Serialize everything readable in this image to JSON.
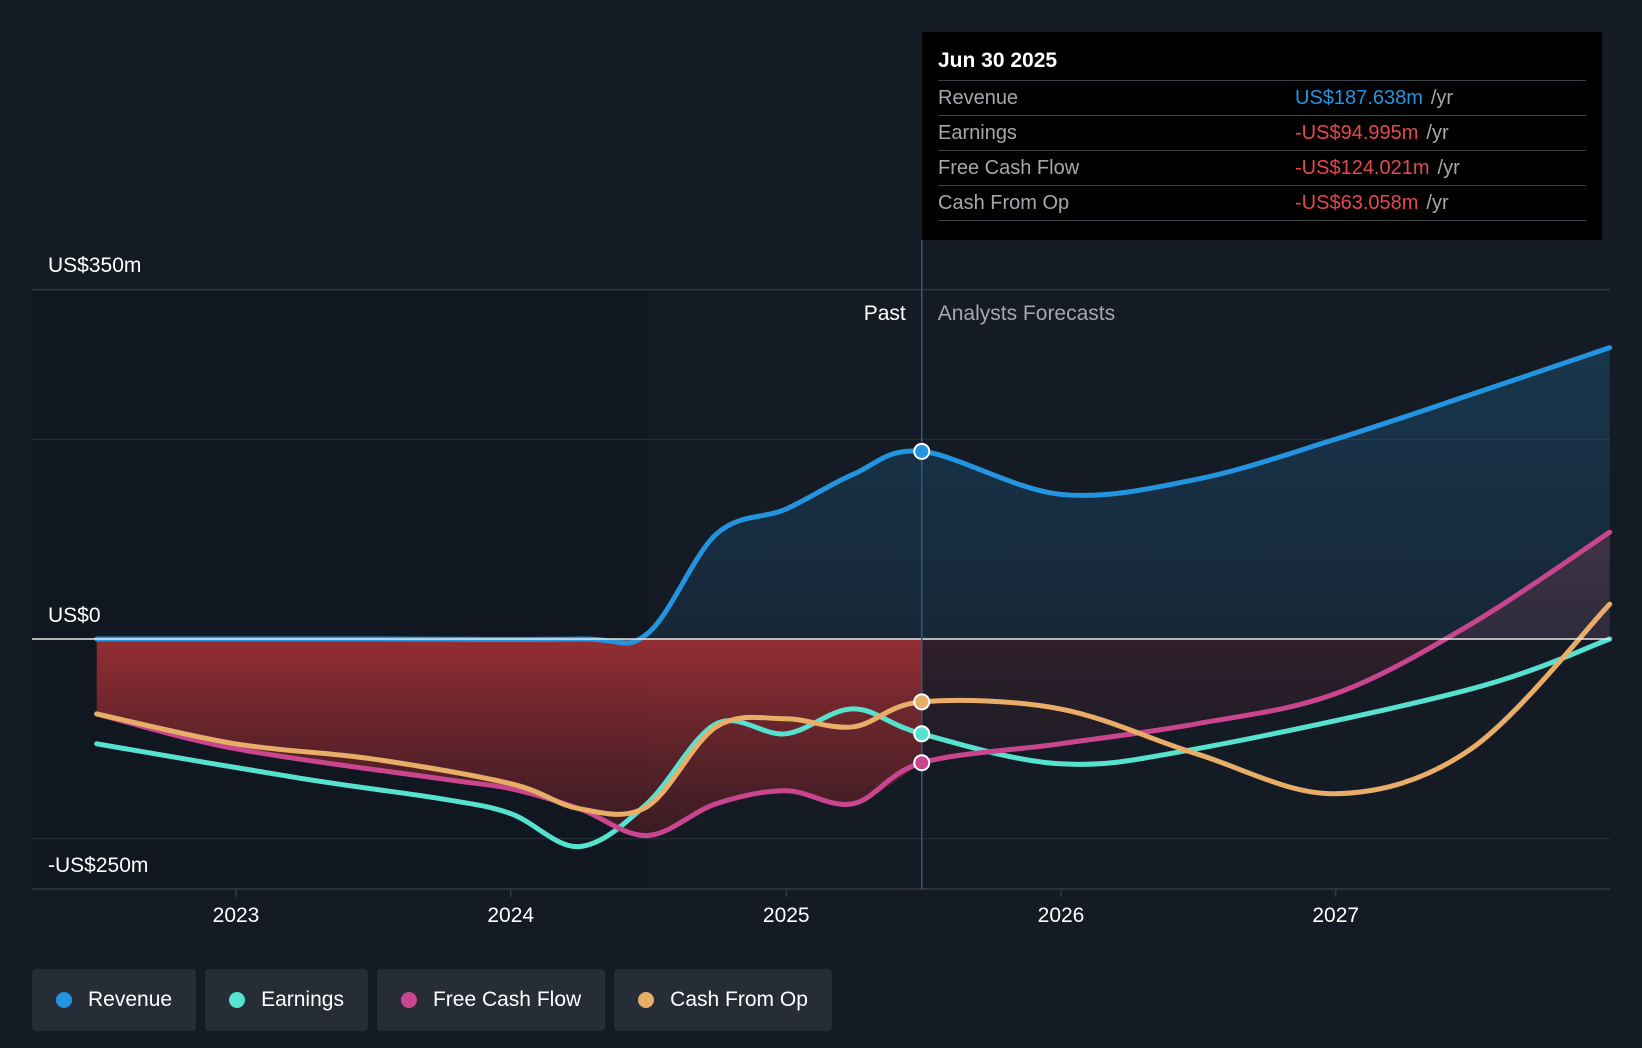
{
  "chart_data": {
    "type": "area",
    "y_labels": {
      "top": "US$350m",
      "zero": "US$0",
      "bottom": "-US$250m"
    },
    "ylim": [
      -250,
      350
    ],
    "x_ticks": [
      "2023",
      "2024",
      "2025",
      "2026",
      "2027"
    ],
    "past_label": "Past",
    "forecast_label": "Analysts Forecasts",
    "series": [
      {
        "name": "Revenue",
        "color": "#2394df",
        "points": [
          [
            "2022-06-30",
            0
          ],
          [
            "2023-06-30",
            0
          ],
          [
            "2024-04-01",
            0
          ],
          [
            "2024-06-30",
            5
          ],
          [
            "2024-09-30",
            105
          ],
          [
            "2024-12-31",
            130
          ],
          [
            "2025-03-31",
            165
          ],
          [
            "2025-06-30",
            188
          ],
          [
            "2025-12-31",
            145
          ],
          [
            "2026-06-30",
            160
          ],
          [
            "2026-12-31",
            200
          ],
          [
            "2027-06-30",
            245
          ],
          [
            "2027-12-31",
            292
          ]
        ]
      },
      {
        "name": "Earnings",
        "color": "#57e2d0",
        "points": [
          [
            "2022-06-30",
            -105
          ],
          [
            "2023-03-31",
            -140
          ],
          [
            "2023-09-30",
            -160
          ],
          [
            "2024-01-01",
            -175
          ],
          [
            "2024-04-01",
            -208
          ],
          [
            "2024-06-30",
            -165
          ],
          [
            "2024-09-30",
            -85
          ],
          [
            "2024-12-31",
            -95
          ],
          [
            "2025-03-31",
            -70
          ],
          [
            "2025-06-30",
            -95
          ],
          [
            "2025-12-31",
            -125
          ],
          [
            "2026-06-30",
            -110
          ],
          [
            "2027-06-30",
            -50
          ],
          [
            "2027-12-31",
            0
          ]
        ]
      },
      {
        "name": "Free Cash Flow",
        "color": "#c9468f",
        "points": [
          [
            "2022-06-30",
            -75
          ],
          [
            "2023-01-01",
            -110
          ],
          [
            "2023-09-30",
            -140
          ],
          [
            "2024-01-01",
            -150
          ],
          [
            "2024-04-01",
            -170
          ],
          [
            "2024-06-30",
            -197
          ],
          [
            "2024-09-30",
            -165
          ],
          [
            "2024-12-31",
            -152
          ],
          [
            "2025-03-31",
            -165
          ],
          [
            "2025-06-30",
            -124
          ],
          [
            "2025-12-31",
            -105
          ],
          [
            "2026-06-30",
            -85
          ],
          [
            "2026-12-31",
            -55
          ],
          [
            "2027-06-30",
            15
          ],
          [
            "2027-12-31",
            107
          ]
        ]
      },
      {
        "name": "Cash From Op",
        "color": "#e8ad67",
        "points": [
          [
            "2022-06-30",
            -75
          ],
          [
            "2022-12-31",
            -105
          ],
          [
            "2023-06-30",
            -120
          ],
          [
            "2024-01-01",
            -145
          ],
          [
            "2024-04-01",
            -170
          ],
          [
            "2024-06-30",
            -168
          ],
          [
            "2024-09-30",
            -88
          ],
          [
            "2024-12-31",
            -80
          ],
          [
            "2025-03-31",
            -88
          ],
          [
            "2025-06-30",
            -63
          ],
          [
            "2025-12-31",
            -70
          ],
          [
            "2026-06-30",
            -115
          ],
          [
            "2026-12-31",
            -155
          ],
          [
            "2027-06-30",
            -110
          ],
          [
            "2027-12-31",
            35
          ]
        ]
      }
    ],
    "highlight_date": "2025-06-30",
    "shaded_past_from": "2024-06-30"
  },
  "tooltip": {
    "date": "Jun 30 2025",
    "rows": [
      {
        "label": "Revenue",
        "value": "US$187.638m",
        "unit": "/yr",
        "color": "#2394df"
      },
      {
        "label": "Earnings",
        "value": "-US$94.995m",
        "unit": "/yr",
        "color": "#e5484d"
      },
      {
        "label": "Free Cash Flow",
        "value": "-US$124.021m",
        "unit": "/yr",
        "color": "#e5484d"
      },
      {
        "label": "Cash From Op",
        "value": "-US$63.058m",
        "unit": "/yr",
        "color": "#e5484d"
      }
    ]
  },
  "legend": [
    {
      "label": "Revenue",
      "color": "#2394df"
    },
    {
      "label": "Earnings",
      "color": "#57e2d0"
    },
    {
      "label": "Free Cash Flow",
      "color": "#c9468f"
    },
    {
      "label": "Cash From Op",
      "color": "#e8ad67"
    }
  ]
}
